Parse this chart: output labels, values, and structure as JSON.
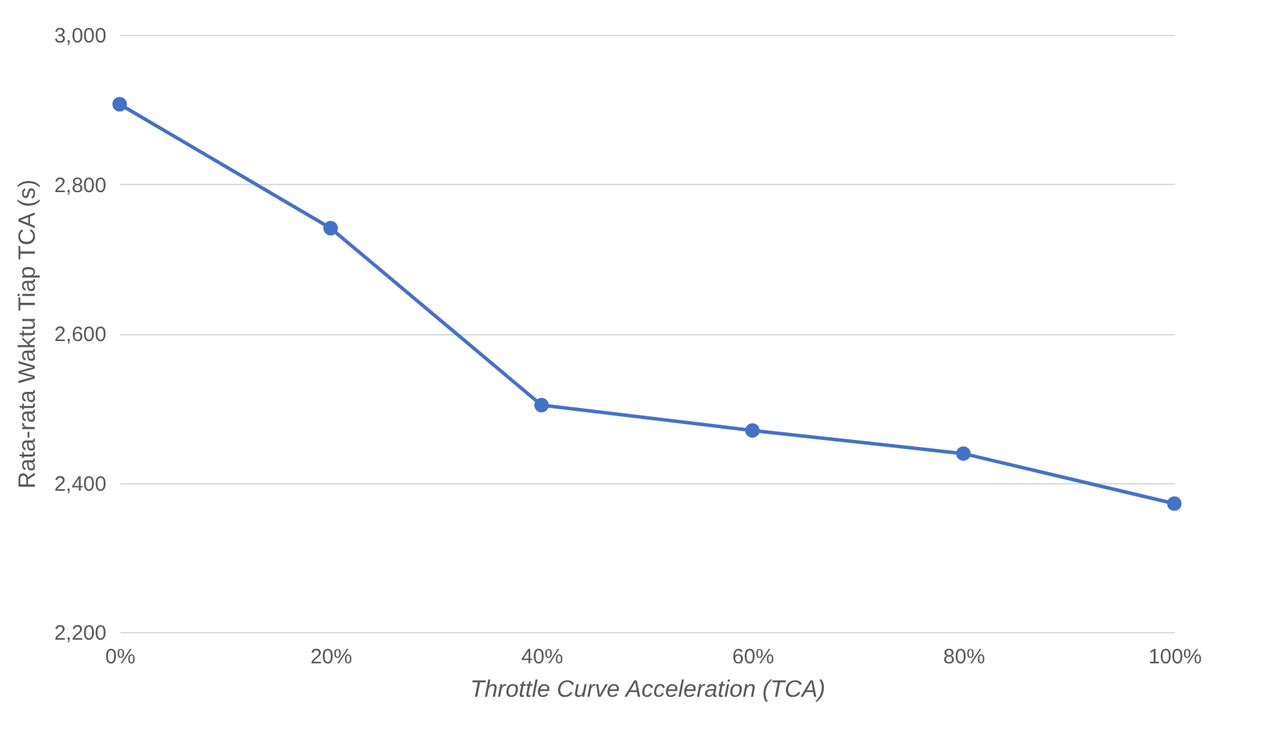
{
  "chart_data": {
    "type": "line",
    "xlabel": "Throttle Curve Acceleration (TCA)",
    "ylabel": "Rata-rata Waktu Tiap TCA (s)",
    "categories": [
      "0%",
      "20%",
      "40%",
      "60%",
      "80%",
      "100%"
    ],
    "series": [
      {
        "color": "#4472c4",
        "values": [
          2907,
          2741,
          2504,
          2470,
          2439,
          2372
        ]
      }
    ],
    "ylim": [
      2200,
      3000
    ],
    "yticks": [
      {
        "value": 2200,
        "label": "2,200"
      },
      {
        "value": 2400,
        "label": "2,400"
      },
      {
        "value": 2600,
        "label": "2,600"
      },
      {
        "value": 2800,
        "label": "2,800"
      },
      {
        "value": 3000,
        "label": "3,000"
      }
    ],
    "grid": "y",
    "marker": "circle",
    "line_style": "solid"
  }
}
